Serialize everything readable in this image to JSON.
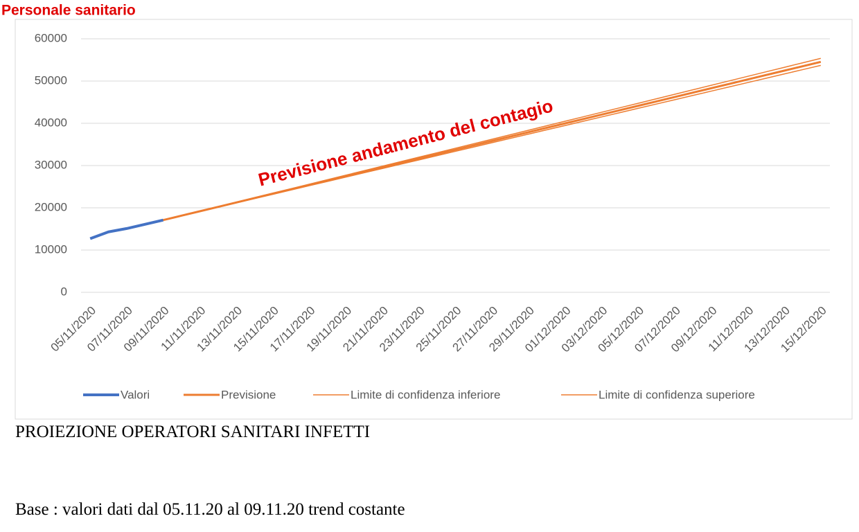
{
  "chart_data": {
    "type": "line",
    "title": "Personale sanitario",
    "annotation": "Previsione andamento del contagio",
    "categories": [
      "05/11/2020",
      null,
      "07/11/2020",
      null,
      "09/11/2020",
      null,
      "11/11/2020",
      null,
      "13/11/2020",
      null,
      "15/11/2020",
      null,
      "17/11/2020",
      null,
      "19/11/2020",
      null,
      "21/11/2020",
      null,
      "23/11/2020",
      null,
      "25/11/2020",
      null,
      "27/11/2020",
      null,
      "29/11/2020",
      null,
      "01/12/2020",
      null,
      "03/12/2020",
      null,
      "05/12/2020",
      null,
      "07/12/2020",
      null,
      "09/12/2020",
      null,
      "11/12/2020",
      null,
      "13/12/2020",
      null,
      "15/12/2020"
    ],
    "series": [
      {
        "name": "Valori",
        "color": "#4472c4",
        "values": [
          12700,
          14300,
          15100,
          16100,
          17100,
          null,
          null,
          null,
          null,
          null,
          null,
          null,
          null,
          null,
          null,
          null,
          null,
          null,
          null,
          null,
          null,
          null,
          null,
          null,
          null,
          null,
          null,
          null,
          null,
          null,
          null,
          null,
          null,
          null,
          null,
          null,
          null,
          null,
          null,
          null,
          null
        ]
      },
      {
        "name": "Previsione",
        "color": "#ed7d31",
        "values": [
          null,
          null,
          null,
          null,
          17100,
          18140,
          19180,
          20220,
          21260,
          22300,
          23340,
          24380,
          25420,
          26460,
          27500,
          28540,
          29580,
          30620,
          31660,
          32700,
          33740,
          34780,
          35820,
          36860,
          37900,
          38940,
          39980,
          41020,
          42060,
          43100,
          44140,
          45180,
          46220,
          47260,
          48300,
          49340,
          50380,
          51420,
          52460,
          53500,
          54540
        ]
      },
      {
        "name": "Limite di confidenza inferiore",
        "color": "#ed7d31",
        "values": [
          null,
          null,
          null,
          null,
          17100,
          18117,
          19134,
          20151,
          21168,
          22185,
          23202,
          24219,
          25236,
          26253,
          27270,
          28287,
          29304,
          30321,
          31338,
          32355,
          33372,
          34389,
          35406,
          36423,
          37440,
          38457,
          39474,
          40491,
          41508,
          42525,
          43542,
          44559,
          45576,
          46593,
          47610,
          48627,
          49644,
          50661,
          51678,
          52695,
          53712
        ]
      },
      {
        "name": "Limite di confidenza superiore",
        "color": "#ed7d31",
        "values": [
          null,
          null,
          null,
          null,
          17100,
          18163,
          19226,
          20289,
          21352,
          22415,
          23478,
          24541,
          25604,
          26667,
          27730,
          28793,
          29856,
          30919,
          31982,
          33045,
          34108,
          35171,
          36234,
          37297,
          38360,
          39423,
          40486,
          41549,
          42612,
          43675,
          44738,
          45801,
          46864,
          47927,
          48990,
          50053,
          51116,
          52179,
          53242,
          54305,
          55368
        ]
      }
    ],
    "ylim": [
      0,
      60000
    ],
    "yticks": [
      0,
      10000,
      20000,
      30000,
      40000,
      50000,
      60000
    ],
    "grid": true,
    "legend": "bottom"
  },
  "document": {
    "caption": "PROIEZIONE OPERATORI SANITARI INFETTI",
    "note": "Base : valori dati dal 05.11.20 al 09.11.20 trend costante"
  }
}
